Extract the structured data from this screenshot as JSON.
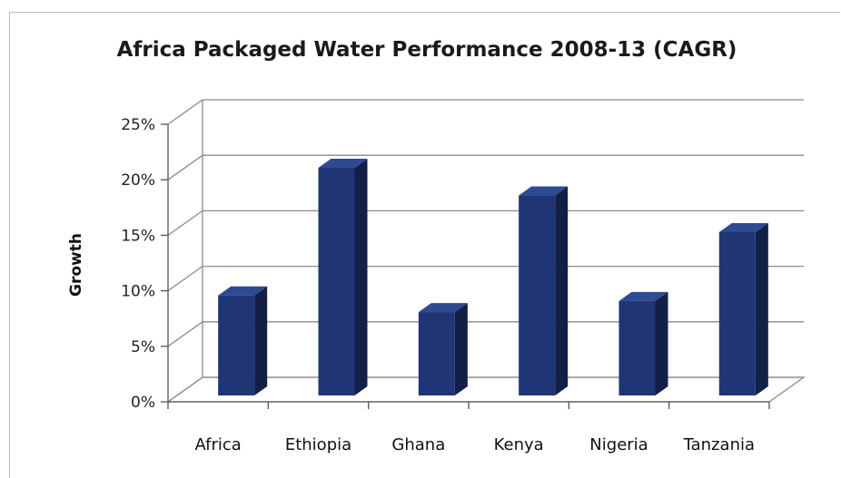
{
  "chart_data": {
    "type": "bar",
    "title": "Africa Packaged Water Performance 2008-13  (CAGR)",
    "xlabel": "",
    "ylabel": "Growth",
    "categories": [
      "Africa",
      "Ethiopia",
      "Ghana",
      "Kenya",
      "Nigeria",
      "Tanzania"
    ],
    "values": [
      9.5,
      21,
      8,
      18.5,
      9,
      15.2
    ],
    "unit": "%",
    "ylim": [
      0,
      25
    ],
    "yticks": [
      "0%",
      "5%",
      "10%",
      "15%",
      "20%",
      "25%"
    ],
    "grid": true,
    "legend": "none",
    "style": "3d-column",
    "colors": {
      "bar_front": "#1f3576",
      "bar_side": "#121f47",
      "bar_top": "#2e4a93",
      "grid": "#8a8a8a"
    }
  }
}
